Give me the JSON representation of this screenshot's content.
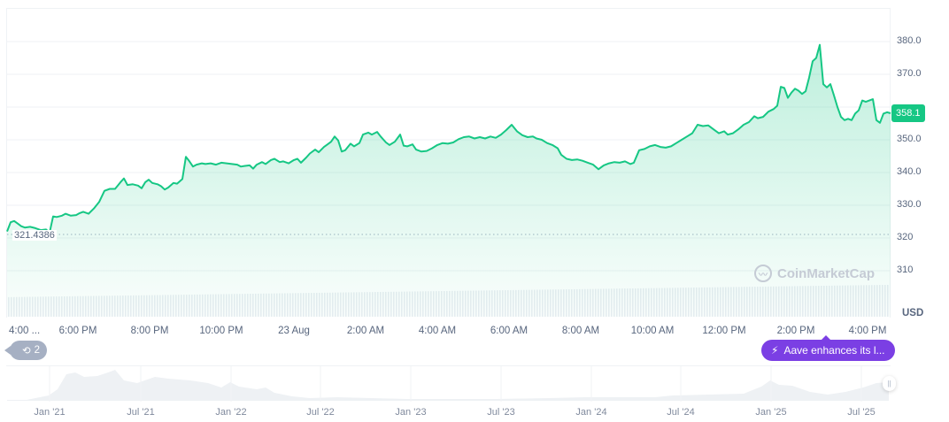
{
  "chart_data": {
    "type": "line",
    "title": "",
    "currency": "USD",
    "xlabel": "",
    "ylabel": "USD",
    "ylim": [
      303,
      391
    ],
    "y_ticks": [
      "380.0",
      "370.0",
      "350.0",
      "340.0",
      "330.0",
      "320",
      "310"
    ],
    "x_ticks": [
      "4:00 ...",
      "6:00 PM",
      "8:00 PM",
      "10:00 PM",
      "23 Aug",
      "2:00 AM",
      "4:00 AM",
      "6:00 AM",
      "8:00 AM",
      "10:00 AM",
      "12:00 PM",
      "2:00 PM",
      "4:00 PM"
    ],
    "grid": true,
    "open_price": "321.4386",
    "current_price": "358.1",
    "series": [
      {
        "name": "Price",
        "color": "#16c784",
        "points": [
          [
            8,
            322.0
          ],
          [
            12,
            324.8
          ],
          [
            16,
            325.2
          ],
          [
            20,
            324.4
          ],
          [
            24,
            323.6
          ],
          [
            28,
            323.2
          ],
          [
            34,
            323.4
          ],
          [
            40,
            323.0
          ],
          [
            46,
            322.4
          ],
          [
            52,
            322.6
          ],
          [
            56,
            321.6
          ],
          [
            60,
            326.6
          ],
          [
            64,
            326.4
          ],
          [
            70,
            326.8
          ],
          [
            74,
            327.4
          ],
          [
            80,
            326.8
          ],
          [
            86,
            327.0
          ],
          [
            90,
            327.6
          ],
          [
            94,
            328.0
          ],
          [
            100,
            327.4
          ],
          [
            106,
            329.0
          ],
          [
            112,
            331.0
          ],
          [
            118,
            334.4
          ],
          [
            124,
            335.0
          ],
          [
            130,
            335.0
          ],
          [
            136,
            337.0
          ],
          [
            140,
            338.2
          ],
          [
            144,
            336.2
          ],
          [
            150,
            336.4
          ],
          [
            156,
            336.0
          ],
          [
            160,
            335.2
          ],
          [
            164,
            337.0
          ],
          [
            168,
            337.8
          ],
          [
            172,
            336.8
          ],
          [
            178,
            336.4
          ],
          [
            182,
            335.8
          ],
          [
            186,
            334.8
          ],
          [
            190,
            335.4
          ],
          [
            196,
            336.8
          ],
          [
            200,
            336.6
          ],
          [
            206,
            338.0
          ],
          [
            210,
            344.8
          ],
          [
            214,
            343.4
          ],
          [
            218,
            341.8
          ],
          [
            222,
            342.4
          ],
          [
            228,
            342.8
          ],
          [
            232,
            342.6
          ],
          [
            238,
            342.8
          ],
          [
            244,
            342.4
          ],
          [
            250,
            343.0
          ],
          [
            256,
            342.8
          ],
          [
            262,
            342.6
          ],
          [
            268,
            342.4
          ],
          [
            272,
            341.8
          ],
          [
            276,
            342.0
          ],
          [
            282,
            342.2
          ],
          [
            286,
            341.2
          ],
          [
            290,
            342.4
          ],
          [
            296,
            343.2
          ],
          [
            300,
            342.6
          ],
          [
            306,
            343.8
          ],
          [
            310,
            344.2
          ],
          [
            316,
            343.2
          ],
          [
            320,
            343.4
          ],
          [
            326,
            342.8
          ],
          [
            332,
            343.8
          ],
          [
            336,
            344.2
          ],
          [
            340,
            343.0
          ],
          [
            346,
            344.6
          ],
          [
            350,
            345.8
          ],
          [
            356,
            347.0
          ],
          [
            360,
            346.2
          ],
          [
            366,
            347.8
          ],
          [
            370,
            348.6
          ],
          [
            374,
            349.4
          ],
          [
            378,
            351.0
          ],
          [
            382,
            349.8
          ],
          [
            386,
            346.4
          ],
          [
            390,
            346.8
          ],
          [
            396,
            348.8
          ],
          [
            400,
            348.0
          ],
          [
            406,
            349.0
          ],
          [
            410,
            351.6
          ],
          [
            416,
            352.2
          ],
          [
            420,
            351.6
          ],
          [
            426,
            352.4
          ],
          [
            430,
            351.0
          ],
          [
            436,
            349.2
          ],
          [
            440,
            348.4
          ],
          [
            446,
            349.4
          ],
          [
            452,
            351.6
          ],
          [
            456,
            348.2
          ],
          [
            460,
            348.0
          ],
          [
            466,
            348.6
          ],
          [
            470,
            347.0
          ],
          [
            476,
            346.4
          ],
          [
            482,
            346.6
          ],
          [
            488,
            347.4
          ],
          [
            494,
            348.4
          ],
          [
            500,
            349.0
          ],
          [
            506,
            348.8
          ],
          [
            512,
            349.2
          ],
          [
            518,
            350.2
          ],
          [
            524,
            350.8
          ],
          [
            530,
            351.0
          ],
          [
            536,
            350.4
          ],
          [
            542,
            350.8
          ],
          [
            548,
            350.4
          ],
          [
            554,
            351.0
          ],
          [
            560,
            350.6
          ],
          [
            566,
            351.6
          ],
          [
            572,
            353.0
          ],
          [
            578,
            354.6
          ],
          [
            584,
            352.6
          ],
          [
            590,
            351.4
          ],
          [
            596,
            350.8
          ],
          [
            602,
            351.0
          ],
          [
            606,
            350.4
          ],
          [
            612,
            350.0
          ],
          [
            618,
            349.0
          ],
          [
            624,
            348.4
          ],
          [
            630,
            347.4
          ],
          [
            634,
            345.4
          ],
          [
            640,
            344.2
          ],
          [
            646,
            343.8
          ],
          [
            652,
            344.0
          ],
          [
            658,
            343.6
          ],
          [
            664,
            343.0
          ],
          [
            670,
            342.4
          ],
          [
            676,
            341.0
          ],
          [
            682,
            342.2
          ],
          [
            688,
            342.8
          ],
          [
            694,
            343.2
          ],
          [
            700,
            343.0
          ],
          [
            706,
            343.4
          ],
          [
            712,
            342.6
          ],
          [
            716,
            343.0
          ],
          [
            722,
            346.8
          ],
          [
            728,
            347.2
          ],
          [
            734,
            348.0
          ],
          [
            740,
            348.4
          ],
          [
            746,
            347.8
          ],
          [
            752,
            347.6
          ],
          [
            758,
            348.0
          ],
          [
            764,
            349.0
          ],
          [
            770,
            350.0
          ],
          [
            776,
            351.0
          ],
          [
            782,
            352.0
          ],
          [
            788,
            354.6
          ],
          [
            794,
            354.2
          ],
          [
            800,
            354.4
          ],
          [
            806,
            353.2
          ],
          [
            812,
            352.0
          ],
          [
            818,
            352.6
          ],
          [
            822,
            351.6
          ],
          [
            828,
            352.0
          ],
          [
            834,
            353.2
          ],
          [
            840,
            354.6
          ],
          [
            846,
            355.4
          ],
          [
            852,
            357.2
          ],
          [
            856,
            356.6
          ],
          [
            862,
            357.0
          ],
          [
            868,
            358.6
          ],
          [
            874,
            359.4
          ],
          [
            878,
            360.4
          ],
          [
            882,
            366.2
          ],
          [
            886,
            365.8
          ],
          [
            890,
            362.8
          ],
          [
            894,
            364.4
          ],
          [
            898,
            365.6
          ],
          [
            902,
            365.0
          ],
          [
            906,
            364.0
          ],
          [
            910,
            364.8
          ],
          [
            914,
            369.0
          ],
          [
            918,
            374.0
          ],
          [
            922,
            375.0
          ],
          [
            926,
            379.0
          ],
          [
            930,
            367.0
          ],
          [
            934,
            366.0
          ],
          [
            938,
            367.0
          ],
          [
            942,
            363.6
          ],
          [
            946,
            360.0
          ],
          [
            950,
            357.0
          ],
          [
            954,
            356.0
          ],
          [
            958,
            356.4
          ],
          [
            962,
            356.0
          ],
          [
            966,
            358.0
          ],
          [
            970,
            359.0
          ],
          [
            974,
            362.0
          ],
          [
            978,
            361.6
          ],
          [
            982,
            362.0
          ],
          [
            986,
            362.4
          ],
          [
            990,
            356.0
          ],
          [
            994,
            355.2
          ],
          [
            998,
            358.0
          ],
          [
            1002,
            358.4
          ],
          [
            1006,
            358.1
          ]
        ]
      }
    ],
    "navigator": {
      "x_ticks": [
        "Jan '21",
        "Jul '21",
        "Jan '22",
        "Jul '22",
        "Jan '23",
        "Jul '23",
        "Jan '24",
        "Jul '24",
        "Jan '25",
        "Jul '25"
      ]
    }
  },
  "overlay": {
    "open_price_label": "321.4386",
    "current_price_tag": "358.1",
    "currency_label": "USD",
    "watermark": "CoinMarketCap",
    "events_count": "2",
    "news_pill": "Aave enhances its l..."
  },
  "colors": {
    "line": "#16c784",
    "news_pill": "#7b3fe4",
    "events_badge": "#a6b0c3"
  }
}
